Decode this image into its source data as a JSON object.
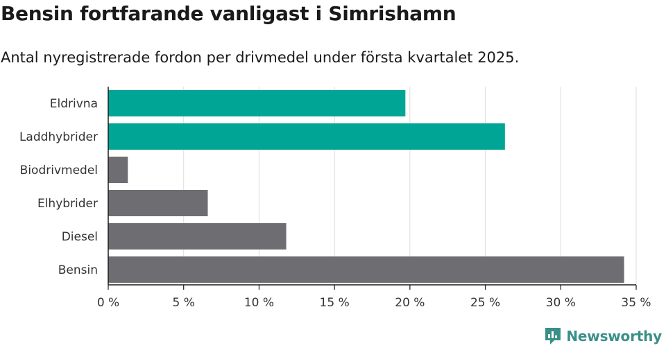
{
  "title": "Bensin fortfarande vanligast i Simrishamn",
  "subtitle": "Antal nyregistrerade fordon per drivmedel under första kvartalet 2025.",
  "brand": {
    "name": "Newsworthy",
    "icon": "newsworthy-logo-icon",
    "color": "#3a8f88"
  },
  "chart_data": {
    "type": "bar",
    "orientation": "horizontal",
    "categories": [
      "Eldrivna",
      "Laddhybrider",
      "Biodrivmedel",
      "Elhybrider",
      "Diesel",
      "Bensin"
    ],
    "values": [
      19.7,
      26.3,
      1.3,
      6.6,
      11.8,
      34.2
    ],
    "colors": [
      "#00a596",
      "#00a596",
      "#6e6d72",
      "#6e6d72",
      "#6e6d72",
      "#6e6d72"
    ],
    "xlim": [
      0,
      35
    ],
    "ticks": [
      0,
      5,
      10,
      15,
      20,
      25,
      30,
      35
    ],
    "tick_labels": [
      "0 %",
      "5 %",
      "10 %",
      "15 %",
      "20 %",
      "25 %",
      "30 %",
      "35 %"
    ],
    "grid": true
  }
}
